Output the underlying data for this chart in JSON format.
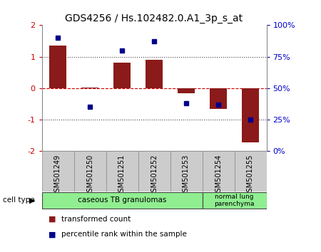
{
  "title": "GDS4256 / Hs.102482.0.A1_3p_s_at",
  "samples": [
    "GSM501249",
    "GSM501250",
    "GSM501251",
    "GSM501252",
    "GSM501253",
    "GSM501254",
    "GSM501255"
  ],
  "transformed_count": [
    1.35,
    0.02,
    0.82,
    0.9,
    -0.15,
    -0.65,
    -1.72
  ],
  "percentile_rank": [
    90,
    35,
    80,
    87,
    38,
    37,
    25
  ],
  "left_ylim": [
    -2,
    2
  ],
  "right_ylim": [
    0,
    100
  ],
  "left_yticks": [
    -2,
    -1,
    0,
    1,
    2
  ],
  "right_yticks": [
    0,
    25,
    50,
    75,
    100
  ],
  "right_yticklabels": [
    "0%",
    "25%",
    "50%",
    "75%",
    "100%"
  ],
  "bar_color": "#8B1A1A",
  "point_color": "#00008B",
  "hline_color": "#CC0000",
  "dotted_color": "#444444",
  "cell_type_groups": [
    {
      "label": "caseous TB granulomas",
      "samples_count": 5,
      "color": "#90EE90"
    },
    {
      "label": "normal lung\nparenchyma",
      "samples_count": 2,
      "color": "#90EE90"
    }
  ],
  "cell_type_label": "cell type",
  "legend_items": [
    {
      "label": "transformed count",
      "color": "#8B1A1A"
    },
    {
      "label": "percentile rank within the sample",
      "color": "#00008B"
    }
  ],
  "left_tick_color": "#CC0000",
  "right_tick_color": "#0000CC",
  "bg_color": "#ffffff",
  "label_box_color": "#CCCCCC",
  "label_box_edge": "#888888"
}
